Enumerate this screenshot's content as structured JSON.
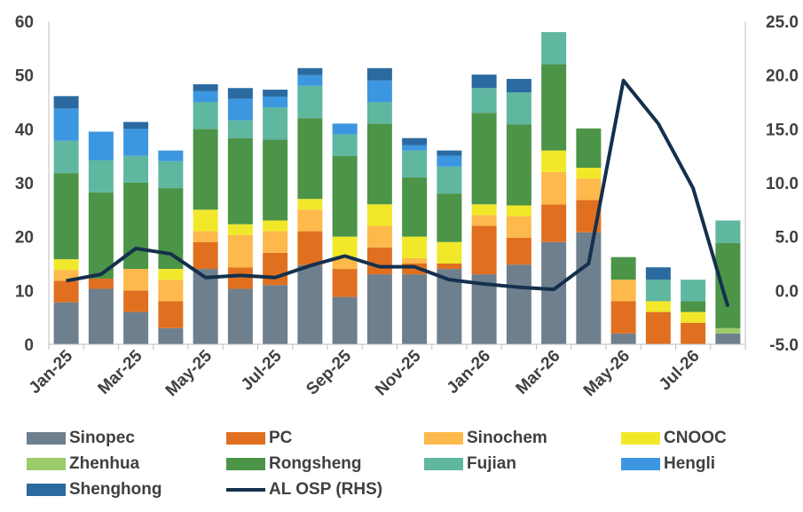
{
  "chart_data": {
    "type": "bar",
    "stacked": true,
    "categories": [
      "Jan-25",
      "Feb-25",
      "Mar-25",
      "Apr-25",
      "May-25",
      "Jun-25",
      "Jul-25",
      "Aug-25",
      "Sep-25",
      "Oct-25",
      "Nov-25",
      "Dec-25",
      "Jan-26",
      "Feb-26",
      "Mar-26",
      "Apr-26",
      "May-26",
      "Jun-26",
      "Jul-26",
      "Aug-26"
    ],
    "x_tick_labels": [
      "Jan-25",
      "Mar-25",
      "May-25",
      "Jul-25",
      "Sep-25",
      "Nov-25",
      "Jan-26",
      "Mar-26",
      "May-26",
      "Jul-26"
    ],
    "ylim": [
      0,
      60
    ],
    "yticks": [
      "0",
      "10",
      "20",
      "30",
      "40",
      "50",
      "60"
    ],
    "y2lim": [
      -5,
      25
    ],
    "y2ticks": [
      "-5.0",
      "0.0",
      "5.0",
      "10.0",
      "15.0",
      "20.0",
      "25.0"
    ],
    "grid": false,
    "legend_position": "bottom",
    "series": [
      {
        "name": "Sinopec",
        "color": "#6E7F8D",
        "values": [
          7.8,
          10.3,
          6,
          3,
          14,
          10.3,
          11,
          14.7,
          8.8,
          13,
          13,
          14,
          13,
          14.8,
          19,
          20.8,
          2,
          0,
          0,
          2
        ]
      },
      {
        "name": "PC",
        "color": "#E07020",
        "values": [
          4,
          1.9,
          4,
          5,
          5,
          4,
          6,
          6.3,
          5.2,
          5,
          2,
          1,
          9,
          5,
          7,
          6,
          6,
          6,
          4,
          0
        ]
      },
      {
        "name": "Sinochem",
        "color": "#FDB94B",
        "values": [
          2,
          0,
          4,
          4,
          2,
          6,
          4,
          4,
          2,
          4,
          1,
          0,
          2,
          4,
          6,
          4,
          4,
          0,
          0,
          0
        ]
      },
      {
        "name": "CNOOC",
        "color": "#F2E82A",
        "values": [
          2,
          0,
          0,
          2,
          4,
          2,
          2,
          2,
          4,
          4,
          4,
          4,
          2,
          2,
          4,
          2,
          0,
          2,
          2,
          0
        ]
      },
      {
        "name": "Zhenhua",
        "color": "#9CCB6A",
        "values": [
          0,
          0,
          0,
          0,
          0,
          0,
          0,
          0,
          0,
          0,
          0,
          0,
          0,
          0,
          0,
          0,
          0,
          0,
          0,
          1
        ]
      },
      {
        "name": "Rongsheng",
        "color": "#4C9447",
        "values": [
          16,
          16,
          16,
          15,
          15,
          16,
          15,
          15,
          15,
          15,
          11,
          9,
          17,
          15,
          16,
          7.3,
          4.2,
          0,
          2,
          15.8
        ]
      },
      {
        "name": "Fujian",
        "color": "#5FB7A0",
        "values": [
          6,
          6,
          5,
          5,
          5,
          3.3,
          6,
          6,
          4,
          4,
          5,
          5,
          4.6,
          6,
          6,
          0,
          0,
          4,
          4,
          4.2
        ]
      },
      {
        "name": "Hengli",
        "color": "#3C97E0",
        "values": [
          6,
          5.3,
          5,
          2,
          2,
          4,
          2,
          2,
          2,
          4,
          1,
          2,
          0,
          0,
          0,
          0,
          0,
          0,
          0,
          0
        ]
      },
      {
        "name": "Shenghong",
        "color": "#2A6AA0",
        "values": [
          2.3,
          0,
          1.3,
          0,
          1.3,
          2,
          1.3,
          1.3,
          0,
          2.3,
          1.3,
          1,
          2.5,
          2.5,
          0,
          0,
          0,
          2.3,
          0,
          0
        ]
      },
      {
        "name": "AL OSP (RHS)",
        "type": "line",
        "axis": "right",
        "color": "#14304D",
        "values": [
          0.9,
          1.5,
          3.9,
          3.4,
          1.2,
          1.4,
          1.2,
          2.3,
          3.2,
          2.2,
          2.2,
          1,
          0.6,
          0.3,
          0.1,
          2.5,
          19.5,
          15.5,
          9.5,
          -1.5
        ]
      }
    ]
  }
}
